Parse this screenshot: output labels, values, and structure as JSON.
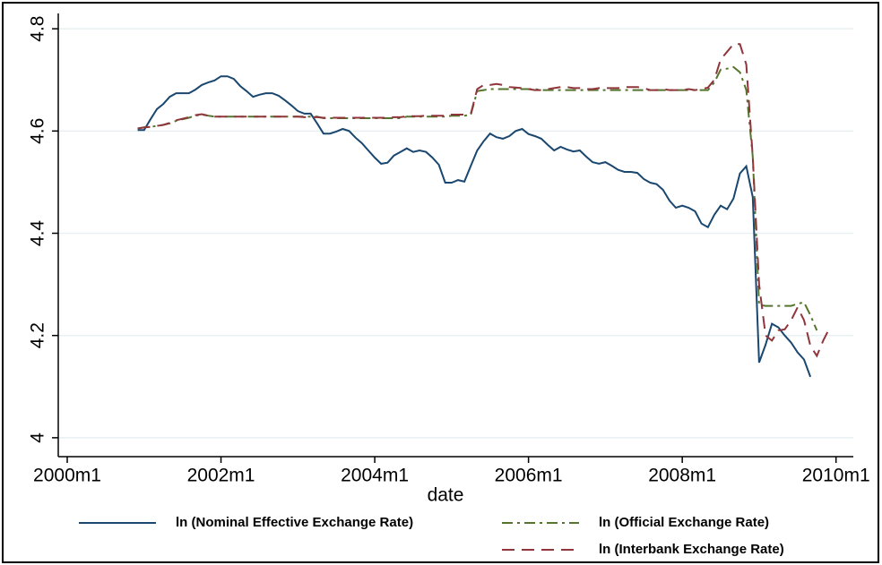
{
  "chart_data": {
    "type": "line",
    "x_label": "date",
    "xlim": [
      478.6,
      602.7
    ],
    "ylim": [
      3.963,
      4.83
    ],
    "xticks": [
      {
        "value": 480,
        "label": "2000m1"
      },
      {
        "value": 504,
        "label": "2002m1"
      },
      {
        "value": 528,
        "label": "2004m1"
      },
      {
        "value": 552,
        "label": "2006m1"
      },
      {
        "value": 576,
        "label": "2008m1"
      },
      {
        "value": 600,
        "label": "2010m1"
      }
    ],
    "yticks": [
      4,
      4.2,
      4.4,
      4.6,
      4.8
    ],
    "grid": true,
    "legend": "bottom",
    "x": [
      491,
      492,
      493,
      494,
      495,
      496,
      497,
      498,
      499,
      500,
      501,
      502,
      503,
      504,
      505,
      506,
      507,
      508,
      509,
      510,
      511,
      512,
      513,
      514,
      515,
      516,
      517,
      518,
      519,
      520,
      521,
      522,
      523,
      524,
      525,
      526,
      527,
      528,
      529,
      530,
      531,
      532,
      533,
      534,
      535,
      536,
      537,
      538,
      539,
      540,
      541,
      542,
      543,
      544,
      545,
      546,
      547,
      548,
      549,
      550,
      551,
      552,
      553,
      554,
      555,
      556,
      557,
      558,
      559,
      560,
      561,
      562,
      563,
      564,
      565,
      566,
      567,
      568,
      569,
      570,
      571,
      572,
      573,
      574,
      575,
      576,
      577,
      578,
      579,
      580,
      581,
      582,
      583,
      584,
      585,
      586,
      587,
      588,
      589,
      590,
      591,
      592,
      593,
      594,
      595,
      596,
      597,
      598,
      599
    ],
    "series": [
      {
        "name": "ln (Nominal Effective Exchange Rate)",
        "color": "#1a476f",
        "dash": "solid",
        "values": [
          4.602,
          4.602,
          4.623,
          4.643,
          4.653,
          4.667,
          4.674,
          4.674,
          4.674,
          4.681,
          4.69,
          4.695,
          4.699,
          4.707,
          4.707,
          4.702,
          4.688,
          4.678,
          4.667,
          4.671,
          4.674,
          4.674,
          4.669,
          4.66,
          4.65,
          4.639,
          4.634,
          4.634,
          4.615,
          4.595,
          4.595,
          4.599,
          4.604,
          4.6,
          4.587,
          4.576,
          4.562,
          4.548,
          4.536,
          4.538,
          4.552,
          4.559,
          4.566,
          4.559,
          4.562,
          4.559,
          4.548,
          4.534,
          4.499,
          4.499,
          4.504,
          4.501,
          4.532,
          4.562,
          4.58,
          4.595,
          4.588,
          4.585,
          4.59,
          4.6,
          4.604,
          4.594,
          4.59,
          4.585,
          4.573,
          4.562,
          4.569,
          4.564,
          4.56,
          4.562,
          4.55,
          4.539,
          4.536,
          4.539,
          4.532,
          4.524,
          4.52,
          4.52,
          4.518,
          4.506,
          4.499,
          4.496,
          4.485,
          4.464,
          4.45,
          4.454,
          4.45,
          4.443,
          4.419,
          4.412,
          4.436,
          4.454,
          4.447,
          4.468,
          4.517,
          4.531,
          4.471,
          4.147,
          4.182,
          4.223,
          4.216,
          4.2,
          4.186,
          4.167,
          4.153,
          4.119,
          null,
          null,
          null
        ]
      },
      {
        "name": "ln (Official Exchange Rate)",
        "color": "#55752f",
        "dash": "dashdot",
        "values": [
          4.605,
          4.607,
          4.608,
          4.61,
          4.612,
          4.615,
          4.62,
          4.623,
          4.626,
          4.63,
          4.632,
          4.63,
          4.628,
          4.628,
          4.628,
          4.628,
          4.628,
          4.628,
          4.628,
          4.628,
          4.628,
          4.628,
          4.628,
          4.628,
          4.628,
          4.628,
          4.628,
          4.628,
          4.628,
          4.625,
          4.625,
          4.625,
          4.625,
          4.625,
          4.625,
          4.625,
          4.625,
          4.625,
          4.625,
          4.625,
          4.625,
          4.625,
          4.628,
          4.628,
          4.628,
          4.628,
          4.628,
          4.628,
          4.628,
          4.63,
          4.63,
          4.63,
          4.632,
          4.678,
          4.68,
          4.682,
          4.682,
          4.682,
          4.682,
          4.682,
          4.682,
          4.682,
          4.682,
          4.68,
          4.68,
          4.68,
          4.68,
          4.68,
          4.68,
          4.68,
          4.68,
          4.68,
          4.68,
          4.68,
          4.68,
          4.68,
          4.68,
          4.68,
          4.68,
          4.68,
          4.68,
          4.68,
          4.68,
          4.68,
          4.68,
          4.68,
          4.68,
          4.68,
          4.68,
          4.68,
          4.695,
          4.72,
          4.722,
          4.725,
          4.715,
          4.68,
          4.55,
          4.26,
          4.258,
          4.258,
          4.258,
          4.258,
          4.258,
          4.262,
          4.265,
          4.24,
          4.21,
          null,
          null
        ]
      },
      {
        "name": "ln (Interbank Exchange Rate)",
        "color": "#90353b",
        "dash": "dash",
        "values": [
          4.605,
          4.607,
          4.608,
          4.61,
          4.612,
          4.616,
          4.621,
          4.624,
          4.627,
          4.631,
          4.633,
          4.63,
          4.628,
          4.628,
          4.628,
          4.628,
          4.628,
          4.628,
          4.628,
          4.628,
          4.628,
          4.628,
          4.628,
          4.628,
          4.628,
          4.628,
          4.627,
          4.627,
          4.627,
          4.626,
          4.626,
          4.626,
          4.626,
          4.626,
          4.626,
          4.626,
          4.626,
          4.626,
          4.626,
          4.626,
          4.627,
          4.627,
          4.629,
          4.629,
          4.629,
          4.63,
          4.63,
          4.63,
          4.63,
          4.632,
          4.632,
          4.632,
          4.634,
          4.682,
          4.69,
          4.69,
          4.692,
          4.69,
          4.686,
          4.685,
          4.684,
          4.682,
          4.68,
          4.68,
          4.682,
          4.684,
          4.686,
          4.686,
          4.684,
          4.684,
          4.682,
          4.682,
          4.684,
          4.684,
          4.684,
          4.684,
          4.686,
          4.686,
          4.686,
          4.684,
          4.68,
          4.68,
          4.682,
          4.68,
          4.68,
          4.68,
          4.682,
          4.68,
          4.682,
          4.685,
          4.7,
          4.74,
          4.755,
          4.77,
          4.77,
          4.73,
          4.55,
          4.3,
          4.2,
          4.19,
          4.21,
          4.212,
          4.23,
          4.255,
          4.23,
          4.18,
          4.16,
          4.19,
          4.215
        ]
      }
    ]
  }
}
